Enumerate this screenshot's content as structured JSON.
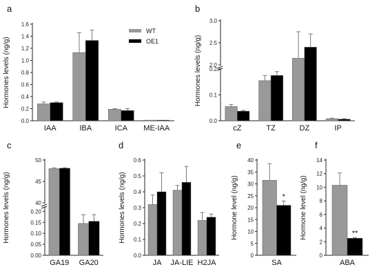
{
  "legend": [
    {
      "label": "WT",
      "color": "#999999"
    },
    {
      "label": "OE1",
      "color": "#000000"
    }
  ],
  "chart_data": [
    {
      "panel": "a",
      "type": "bar",
      "ylabel": "Hormones levels (ng/g)",
      "categories": [
        "IAA",
        "IBA",
        "ICA",
        "ME-IAA"
      ],
      "series": [
        {
          "name": "WT",
          "values": [
            0.28,
            1.13,
            0.19,
            0.01
          ],
          "errors": [
            0.03,
            0.33,
            0.01,
            0.0
          ]
        },
        {
          "name": "OE1",
          "values": [
            0.3,
            1.33,
            0.17,
            0.01
          ],
          "errors": [
            0.01,
            0.17,
            0.03,
            0.0
          ]
        }
      ],
      "ylim": [
        0,
        1.6
      ],
      "yticks": [
        "0.0",
        "0.2",
        "0.4",
        "0.6",
        "0.8",
        "1.0",
        "1.2",
        "1.4",
        "1.6"
      ]
    },
    {
      "panel": "b",
      "type": "bar",
      "ylabel": "Hormones levels (ng/g)",
      "categories": [
        "cZ",
        "TZ",
        "DZ",
        "IP"
      ],
      "series": [
        {
          "name": "WT",
          "values": [
            0.055,
            0.155,
            2.15,
            0.008
          ],
          "errors": [
            0.008,
            0.02,
            0.6,
            0.002
          ]
        },
        {
          "name": "OE1",
          "values": [
            0.037,
            0.175,
            2.4,
            0.006
          ],
          "errors": [
            0.003,
            0.015,
            0.3,
            0.002
          ]
        }
      ],
      "axis_break": {
        "low": [
          0,
          0.2
        ],
        "high": [
          2.0,
          3.0
        ]
      },
      "yticks": [
        "0.0",
        "0.1",
        "0.2",
        "2.0",
        "2.5",
        "3.0"
      ]
    },
    {
      "panel": "c",
      "type": "bar",
      "ylabel": "Hormones levels (ng/g)",
      "categories": [
        "GA19",
        "GA20"
      ],
      "series": [
        {
          "name": "WT",
          "values": [
            48.0,
            0.145
          ],
          "errors": [
            0.2,
            0.04
          ]
        },
        {
          "name": "OE1",
          "values": [
            48.1,
            0.155
          ],
          "errors": [
            0.1,
            0.03
          ]
        }
      ],
      "axis_break": {
        "low": [
          0,
          0.22
        ],
        "high": [
          40,
          50
        ]
      },
      "yticks": [
        "0.00",
        "0.05",
        "0.10",
        "0.15",
        "0.20",
        "40",
        "45",
        "50"
      ]
    },
    {
      "panel": "d",
      "type": "bar",
      "ylabel": "Hormones levels (ng/g)",
      "categories": [
        "JA",
        "JA-LIE",
        "H2JA"
      ],
      "series": [
        {
          "name": "WT",
          "values": [
            0.32,
            0.41,
            0.22
          ],
          "errors": [
            0.06,
            0.03,
            0.05
          ]
        },
        {
          "name": "OE1",
          "values": [
            0.4,
            0.46,
            0.24
          ],
          "errors": [
            0.12,
            0.1,
            0.02
          ]
        }
      ],
      "ylim": [
        0,
        0.6
      ],
      "yticks": [
        "0.0",
        "0.1",
        "0.2",
        "0.3",
        "0.4",
        "0.5",
        "0.6"
      ]
    },
    {
      "panel": "e",
      "type": "bar",
      "ylabel": "Hormone level (ng/g)",
      "categories": [
        "SA"
      ],
      "series": [
        {
          "name": "WT",
          "values": [
            31.5
          ],
          "errors": [
            7.0
          ]
        },
        {
          "name": "OE1",
          "values": [
            21.0
          ],
          "errors": [
            1.8
          ]
        }
      ],
      "significance": "*",
      "ylim": [
        0,
        40
      ],
      "yticks": [
        "0",
        "5",
        "10",
        "15",
        "20",
        "25",
        "30",
        "35",
        "40"
      ]
    },
    {
      "panel": "f",
      "type": "bar",
      "ylabel": "Hormone level (ng/g)",
      "categories": [
        "ABA"
      ],
      "series": [
        {
          "name": "WT",
          "values": [
            10.3
          ],
          "errors": [
            1.8
          ]
        },
        {
          "name": "OE1",
          "values": [
            2.5
          ],
          "errors": [
            0.1
          ]
        }
      ],
      "significance": "**",
      "ylim": [
        0,
        14
      ],
      "yticks": [
        "0",
        "2",
        "4",
        "6",
        "8",
        "10",
        "12",
        "14"
      ]
    }
  ]
}
